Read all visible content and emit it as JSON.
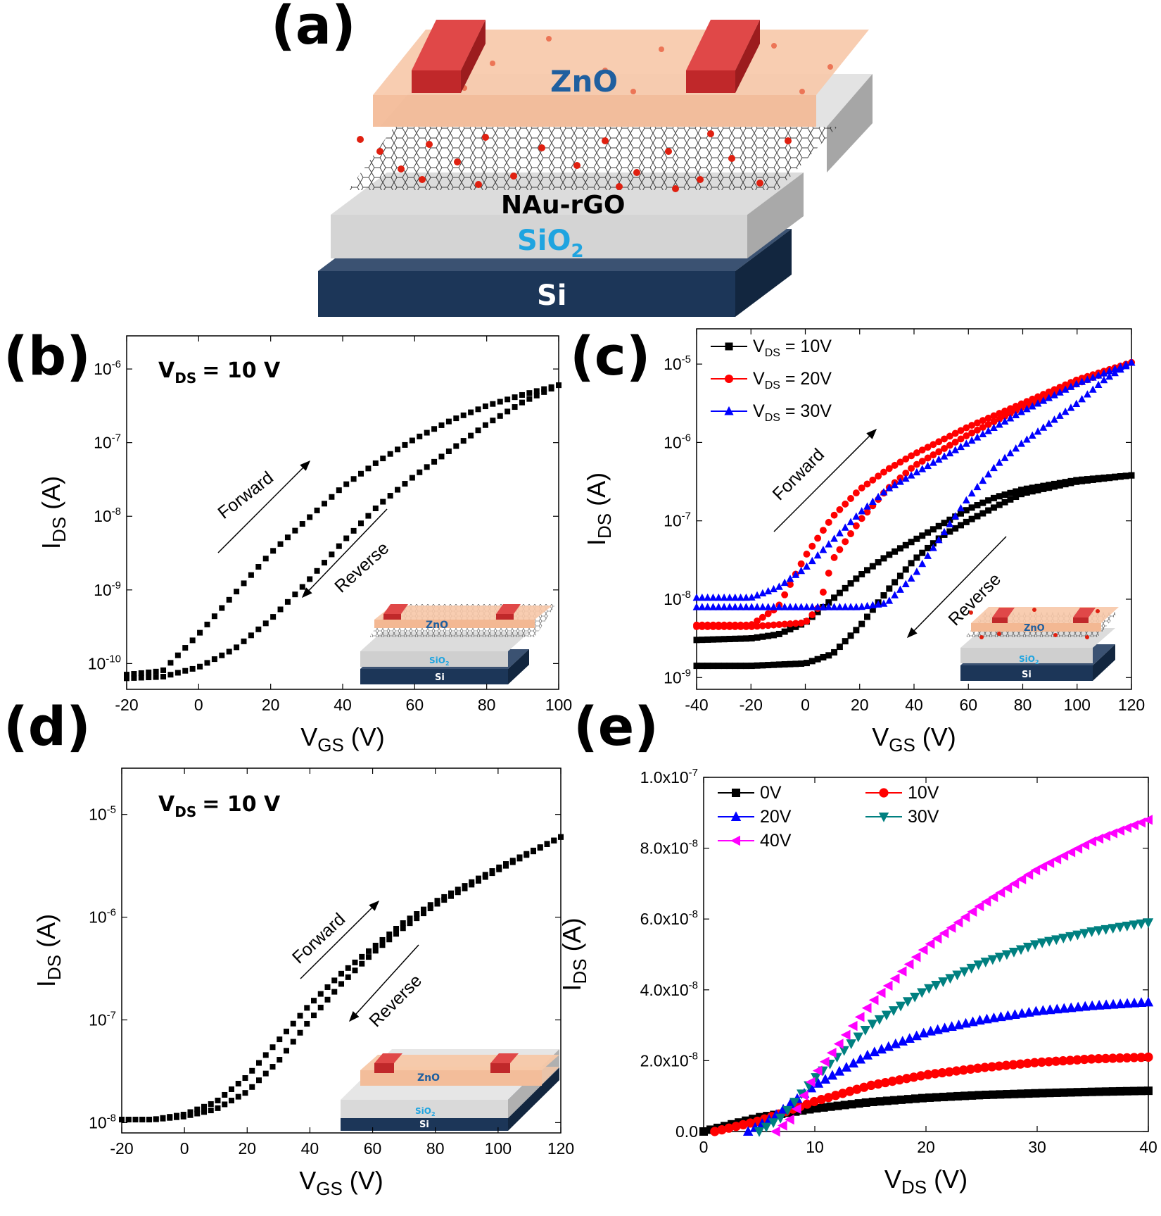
{
  "panels": {
    "a": {
      "label": "(a)",
      "layers": {
        "zno": "ZnO",
        "rgo": "NAu-rGO",
        "sio2": "SiO",
        "sio2_sub": "2",
        "si": "Si"
      }
    },
    "b": {
      "label": "(b)",
      "vds": "V",
      "vds_sub": "DS",
      "vds_val": "= 10 V",
      "forward": "Forward",
      "reverse": "Reverse",
      "inset": {
        "zno": "ZnO",
        "sio2": "SiO",
        "sio2_sub": "2",
        "si": "Si"
      }
    },
    "c": {
      "label": "(c)",
      "forward": "Forward",
      "reverse": "Reverse",
      "inset": {
        "zno": "ZnO",
        "sio2": "SiO",
        "sio2_sub": "2",
        "si": "Si"
      }
    },
    "d": {
      "label": "(d)",
      "vds": "V",
      "vds_sub": "DS",
      "vds_val": "= 10 V",
      "forward": "Forward",
      "reverse": "Reverse",
      "inset": {
        "zno": "ZnO",
        "sio2": "SiO",
        "sio2_sub": "2",
        "si": "Si"
      }
    },
    "e": {
      "label": "(e)"
    }
  },
  "chart_data": [
    {
      "id": "b",
      "type": "line",
      "xscale": "linear",
      "yscale": "log",
      "xlabel": "V",
      "xlabel_sub": "GS",
      "xlabel_unit": " (V)",
      "ylabel": "I",
      "ylabel_sub": "DS",
      "ylabel_unit": " (A)",
      "xlim": [
        -20,
        100
      ],
      "ylim_exp": [
        -10.35,
        -5.55
      ],
      "xticks": [
        -20,
        0,
        20,
        40,
        60,
        80,
        100
      ],
      "yticks": [
        {
          "base": "10",
          "exp": "-10"
        },
        {
          "base": "10",
          "exp": "-9"
        },
        {
          "base": "10",
          "exp": "-8"
        },
        {
          "base": "10",
          "exp": "-7"
        },
        {
          "base": "10",
          "exp": "-6"
        }
      ],
      "ytick_vals": [
        -10,
        -9,
        -8,
        -7,
        -6
      ],
      "series": [
        {
          "name": "Forward",
          "color": "#000000",
          "marker": "square",
          "x": [
            -20,
            -10,
            0,
            10,
            20,
            30,
            40,
            50,
            60,
            70,
            80,
            90,
            100
          ],
          "logy": [
            -10.15,
            -10.1,
            -9.6,
            -9.05,
            -8.5,
            -8.05,
            -7.6,
            -7.25,
            -6.95,
            -6.7,
            -6.5,
            -6.35,
            -6.22
          ]
        },
        {
          "name": "Reverse",
          "color": "#000000",
          "marker": "square",
          "x": [
            -20,
            -10,
            0,
            10,
            20,
            30,
            40,
            50,
            60,
            70,
            80,
            90,
            100
          ],
          "logy": [
            -10.2,
            -10.18,
            -10.05,
            -9.8,
            -9.4,
            -8.9,
            -8.35,
            -7.85,
            -7.45,
            -7.1,
            -6.75,
            -6.45,
            -6.22
          ]
        }
      ]
    },
    {
      "id": "c",
      "type": "line",
      "xscale": "linear",
      "yscale": "log",
      "xlabel": "V",
      "xlabel_sub": "GS",
      "xlabel_unit": " (V)",
      "ylabel": "I",
      "ylabel_sub": "DS",
      "ylabel_unit": " (A)",
      "xlim": [
        -40,
        120
      ],
      "ylim_exp": [
        -9.15,
        -4.55
      ],
      "xticks": [
        -40,
        -20,
        0,
        20,
        40,
        60,
        80,
        100,
        120
      ],
      "yticks": [
        {
          "base": "10",
          "exp": "-9"
        },
        {
          "base": "10",
          "exp": "-8"
        },
        {
          "base": "10",
          "exp": "-7"
        },
        {
          "base": "10",
          "exp": "-6"
        },
        {
          "base": "10",
          "exp": "-5"
        }
      ],
      "ytick_vals": [
        -9,
        -8,
        -7,
        -6,
        -5
      ],
      "legend": [
        {
          "sym": "V",
          "sub": "DS",
          "text": " = 10V",
          "color": "#000000",
          "marker": "square"
        },
        {
          "sym": "V",
          "sub": "DS",
          "text": " = 20V",
          "color": "#ff0000",
          "marker": "circle"
        },
        {
          "sym": "V",
          "sub": "DS",
          "text": " = 30V",
          "color": "#0000ff",
          "marker": "triangle"
        }
      ],
      "series": [
        {
          "name": "VDS = 10V forward",
          "color": "#000000",
          "marker": "square",
          "x": [
            -40,
            -20,
            -10,
            0,
            10,
            20,
            30,
            40,
            50,
            60,
            70,
            80,
            100,
            120
          ],
          "logy": [
            -8.52,
            -8.5,
            -8.45,
            -8.3,
            -8.0,
            -7.7,
            -7.45,
            -7.25,
            -7.05,
            -6.85,
            -6.7,
            -6.6,
            -6.48,
            -6.42
          ]
        },
        {
          "name": "VDS = 10V reverse",
          "color": "#000000",
          "marker": "square",
          "x": [
            -40,
            -20,
            0,
            10,
            20,
            30,
            40,
            50,
            60,
            70,
            80,
            100,
            120
          ],
          "logy": [
            -8.85,
            -8.85,
            -8.82,
            -8.7,
            -8.35,
            -7.9,
            -7.5,
            -7.2,
            -7.0,
            -6.82,
            -6.65,
            -6.5,
            -6.42
          ]
        },
        {
          "name": "VDS = 20V forward",
          "color": "#ff0000",
          "marker": "circle",
          "x": [
            -40,
            -20,
            -10,
            0,
            10,
            20,
            30,
            40,
            60,
            80,
            100,
            120
          ],
          "logy": [
            -8.33,
            -8.33,
            -8.1,
            -7.45,
            -6.95,
            -6.6,
            -6.35,
            -6.15,
            -5.8,
            -5.5,
            -5.2,
            -4.98
          ]
        },
        {
          "name": "VDS = 20V reverse",
          "color": "#ff0000",
          "marker": "circle",
          "x": [
            -40,
            -20,
            0,
            5,
            10,
            20,
            30,
            40,
            60,
            80,
            100,
            120
          ],
          "logy": [
            -8.35,
            -8.35,
            -8.3,
            -8.1,
            -7.5,
            -7.0,
            -6.6,
            -6.3,
            -5.9,
            -5.55,
            -5.25,
            -4.98
          ]
        },
        {
          "name": "VDS = 30V forward",
          "color": "#0000ff",
          "marker": "triangle",
          "x": [
            -40,
            -20,
            -10,
            0,
            10,
            20,
            30,
            40,
            60,
            80,
            100,
            120
          ],
          "logy": [
            -7.98,
            -7.98,
            -7.85,
            -7.6,
            -7.25,
            -6.9,
            -6.6,
            -6.4,
            -6.0,
            -5.6,
            -5.25,
            -4.98
          ]
        },
        {
          "name": "VDS = 30V reverse",
          "color": "#0000ff",
          "marker": "triangle",
          "x": [
            -40,
            0,
            20,
            30,
            40,
            50,
            60,
            70,
            80,
            90,
            100,
            110,
            120
          ],
          "logy": [
            -8.1,
            -8.1,
            -8.1,
            -8.05,
            -7.7,
            -7.2,
            -6.7,
            -6.3,
            -6.0,
            -5.75,
            -5.5,
            -5.2,
            -4.98
          ]
        }
      ]
    },
    {
      "id": "d",
      "type": "line",
      "xscale": "linear",
      "yscale": "log",
      "xlabel": "V",
      "xlabel_sub": "GS",
      "xlabel_unit": " (V)",
      "ylabel": "I",
      "ylabel_sub": "DS",
      "ylabel_unit": " (A)",
      "xlim": [
        -20,
        120
      ],
      "ylim_exp": [
        -8.1,
        -4.55
      ],
      "xticks": [
        -20,
        0,
        20,
        40,
        60,
        80,
        100,
        120
      ],
      "yticks": [
        {
          "base": "10",
          "exp": "-8"
        },
        {
          "base": "10",
          "exp": "-7"
        },
        {
          "base": "10",
          "exp": "-6"
        },
        {
          "base": "10",
          "exp": "-5"
        }
      ],
      "ytick_vals": [
        -8,
        -7,
        -6,
        -5
      ],
      "series": [
        {
          "name": "Forward",
          "color": "#000000",
          "marker": "square",
          "x": [
            -20,
            -10,
            0,
            10,
            20,
            30,
            40,
            50,
            60,
            70,
            80,
            100,
            120
          ],
          "logy": [
            -7.97,
            -7.97,
            -7.92,
            -7.8,
            -7.55,
            -7.2,
            -6.85,
            -6.55,
            -6.3,
            -6.05,
            -5.85,
            -5.52,
            -5.22
          ]
        },
        {
          "name": "Reverse",
          "color": "#000000",
          "marker": "square",
          "x": [
            -20,
            -10,
            0,
            10,
            20,
            30,
            40,
            50,
            60,
            70,
            80,
            100,
            120
          ],
          "logy": [
            -7.97,
            -7.97,
            -7.94,
            -7.87,
            -7.7,
            -7.4,
            -7.0,
            -6.65,
            -6.35,
            -6.1,
            -5.88,
            -5.54,
            -5.22
          ]
        }
      ]
    },
    {
      "id": "e",
      "type": "scatter",
      "xscale": "linear",
      "yscale": "linear",
      "xlabel": "V",
      "xlabel_sub": "DS",
      "xlabel_unit": " (V)",
      "ylabel": "I",
      "ylabel_sub": "DS",
      "ylabel_unit": " (A)",
      "xlim": [
        0,
        40
      ],
      "ylim": [
        0,
        1e-07
      ],
      "xticks": [
        0,
        10,
        20,
        30,
        40
      ],
      "yticks": [
        {
          "text": "0.0",
          "exp": ""
        },
        {
          "text": "2.0x10",
          "exp": "-8"
        },
        {
          "text": "4.0x10",
          "exp": "-8"
        },
        {
          "text": "6.0x10",
          "exp": "-8"
        },
        {
          "text": "8.0x10",
          "exp": "-8"
        },
        {
          "text": "1.0x10",
          "exp": "-7"
        }
      ],
      "ytick_vals": [
        0,
        2e-08,
        4e-08,
        6e-08,
        8e-08,
        1e-07
      ],
      "legend": [
        {
          "text": "0V",
          "color": "#000000",
          "marker": "square"
        },
        {
          "text": "10V",
          "color": "#ff0000",
          "marker": "circle"
        },
        {
          "text": "20V",
          "color": "#0000ff",
          "marker": "triangle"
        },
        {
          "text": "30V",
          "color": "#008080",
          "marker": "triangle-down"
        },
        {
          "text": "40V",
          "color": "#ff00ff",
          "marker": "triangle-left"
        }
      ],
      "series": [
        {
          "name": "0V",
          "color": "#000000",
          "marker": "square",
          "x": [
            0,
            5,
            10,
            15,
            20,
            25,
            30,
            35,
            40
          ],
          "y": [
            0,
            4e-09,
            6.5e-09,
            8.3e-09,
            9.5e-09,
            1.03e-08,
            1.08e-08,
            1.12e-08,
            1.15e-08
          ]
        },
        {
          "name": "10V",
          "color": "#ff0000",
          "marker": "circle",
          "x": [
            1,
            5,
            10,
            15,
            20,
            25,
            30,
            35,
            40
          ],
          "y": [
            0,
            3e-09,
            8.5e-09,
            1.3e-08,
            1.6e-08,
            1.8e-08,
            1.95e-08,
            2.05e-08,
            2.1e-08
          ]
        },
        {
          "name": "20V",
          "color": "#0000ff",
          "marker": "triangle",
          "x": [
            4,
            6,
            10,
            15,
            20,
            25,
            30,
            35,
            40
          ],
          "y": [
            0,
            3.5e-09,
            1.3e-08,
            2.2e-08,
            2.8e-08,
            3.15e-08,
            3.4e-08,
            3.55e-08,
            3.65e-08
          ]
        },
        {
          "name": "30V",
          "color": "#008080",
          "marker": "triangle-down",
          "x": [
            5,
            7,
            10,
            15,
            20,
            25,
            30,
            35,
            40
          ],
          "y": [
            0,
            4e-09,
            1.5e-08,
            3e-08,
            4e-08,
            4.75e-08,
            5.3e-08,
            5.65e-08,
            5.9e-08
          ]
        },
        {
          "name": "40V",
          "color": "#ff00ff",
          "marker": "triangle-left",
          "x": [
            6.5,
            8,
            10,
            15,
            20,
            25,
            30,
            35,
            40
          ],
          "y": [
            0,
            4e-09,
            1.6e-08,
            3.6e-08,
            5.2e-08,
            6.4e-08,
            7.4e-08,
            8.2e-08,
            8.8e-08
          ]
        }
      ]
    }
  ]
}
